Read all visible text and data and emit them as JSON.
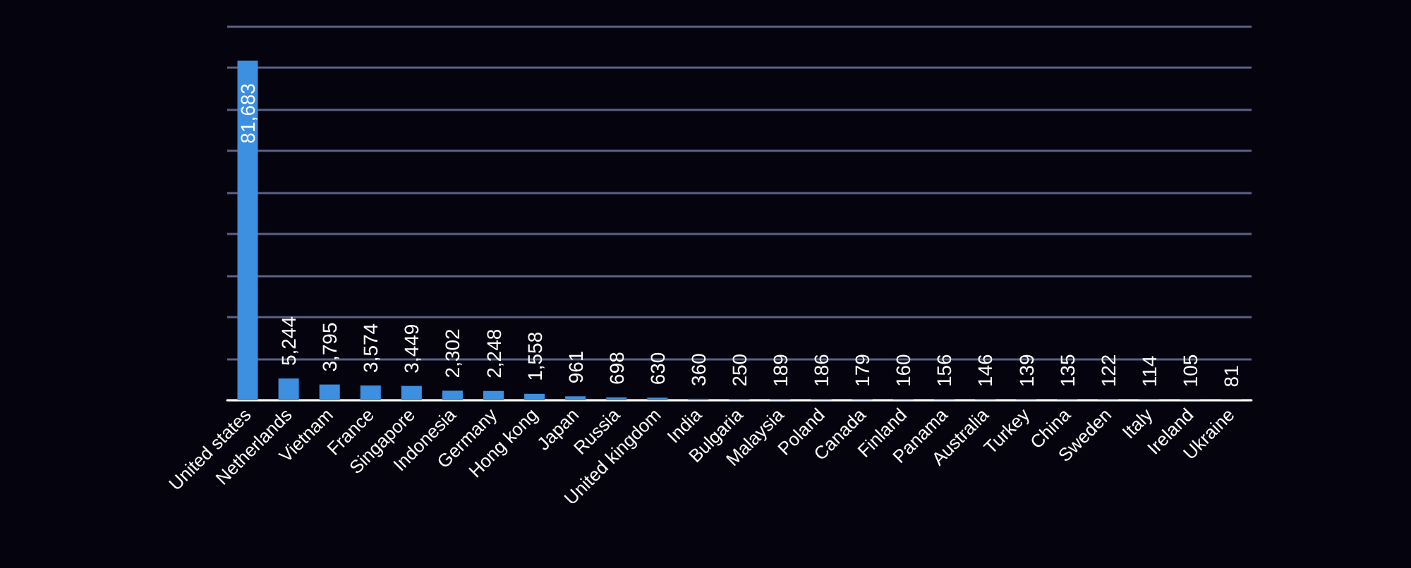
{
  "chart_data": {
    "type": "bar",
    "categories": [
      "United states",
      "Netherlands",
      "Vietnam",
      "France",
      "Singapore",
      "Indonesia",
      "Germany",
      "Hong kong",
      "Japan",
      "Russia",
      "United kingdom",
      "India",
      "Bulgaria",
      "Malaysia",
      "Poland",
      "Canada",
      "Finland",
      "Panama",
      "Australia",
      "Turkey",
      "China",
      "Sweden",
      "Italy",
      "Ireland",
      "Ukraine"
    ],
    "values": [
      81683,
      5244,
      3795,
      3574,
      3449,
      2302,
      2248,
      1558,
      961,
      698,
      630,
      360,
      250,
      189,
      186,
      179,
      160,
      156,
      146,
      139,
      135,
      122,
      114,
      105,
      81
    ],
    "value_labels": [
      "81,683",
      "5,244",
      "3,795",
      "3,574",
      "3,449",
      "2,302",
      "2,248",
      "1,558",
      "961",
      "698",
      "630",
      "360",
      "250",
      "189",
      "186",
      "179",
      "160",
      "156",
      "146",
      "139",
      "135",
      "122",
      "114",
      "105",
      "81"
    ],
    "color": "#3d8fe0",
    "ylim": [
      0,
      90000
    ],
    "yticks": [
      {
        "value": 0,
        "label": null
      },
      {
        "value": 10000,
        "label": null
      },
      {
        "value": 20000,
        "label": null
      },
      {
        "value": 30000,
        "label": null
      },
      {
        "value": 40000,
        "label": null
      },
      {
        "value": 50000,
        "label": null
      },
      {
        "value": 60000,
        "label": null
      },
      {
        "value": 70000,
        "label": null
      },
      {
        "value": 80000,
        "label": null
      },
      {
        "value": 90000,
        "label": null
      }
    ],
    "tick_labels": "x",
    "grid": "y"
  }
}
